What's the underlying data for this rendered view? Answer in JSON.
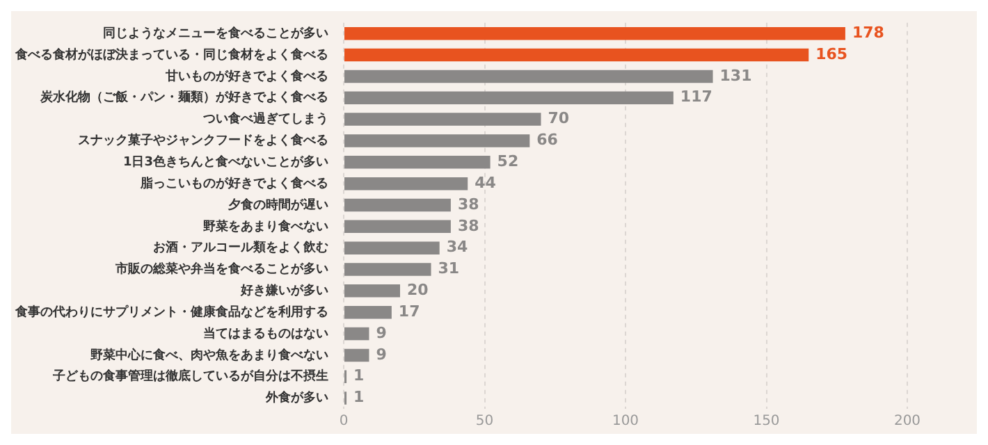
{
  "chart_data": {
    "type": "bar",
    "orientation": "horizontal",
    "categories": [
      "同じようなメニューを食べることが多い",
      "食べる食材がほぼ決まっている・同じ食材をよく食べる",
      "甘いものが好きでよく食べる",
      "炭水化物（ご飯・パン・麺類）が好きでよく食べる",
      "つい食べ過ぎてしまう",
      "スナック菓子やジャンクフードをよく食べる",
      "1日3色きちんと食べないことが多い",
      "脂っこいものが好きでよく食べる",
      "夕食の時間が遅い",
      "野菜をあまり食べない",
      "お酒・アルコール類をよく飲む",
      "市販の総菜や弁当を食べることが多い",
      "好き嫌いが多い",
      "食事の代わりにサプリメント・健康食品などを利用する",
      "当てはまるものはない",
      "野菜中心に食べ、肉や魚をあまり食べない",
      "子どもの食事管理は徹底しているが自分は不摂生",
      "外食が多い"
    ],
    "values": [
      178,
      165,
      131,
      117,
      70,
      66,
      52,
      44,
      38,
      38,
      34,
      31,
      20,
      17,
      9,
      9,
      1,
      1
    ],
    "colors": [
      "#e8531f",
      "#e8531f",
      "#8a8887",
      "#8a8887",
      "#8a8887",
      "#8a8887",
      "#8a8887",
      "#8a8887",
      "#8a8887",
      "#8a8887",
      "#8a8887",
      "#8a8887",
      "#8a8887",
      "#8a8887",
      "#8a8887",
      "#8a8887",
      "#8a8887",
      "#8a8887"
    ],
    "xlim": [
      0,
      200
    ],
    "xticks": [
      0,
      50,
      100,
      150,
      200
    ],
    "grid": "x",
    "data_labels": true,
    "legend": false
  }
}
